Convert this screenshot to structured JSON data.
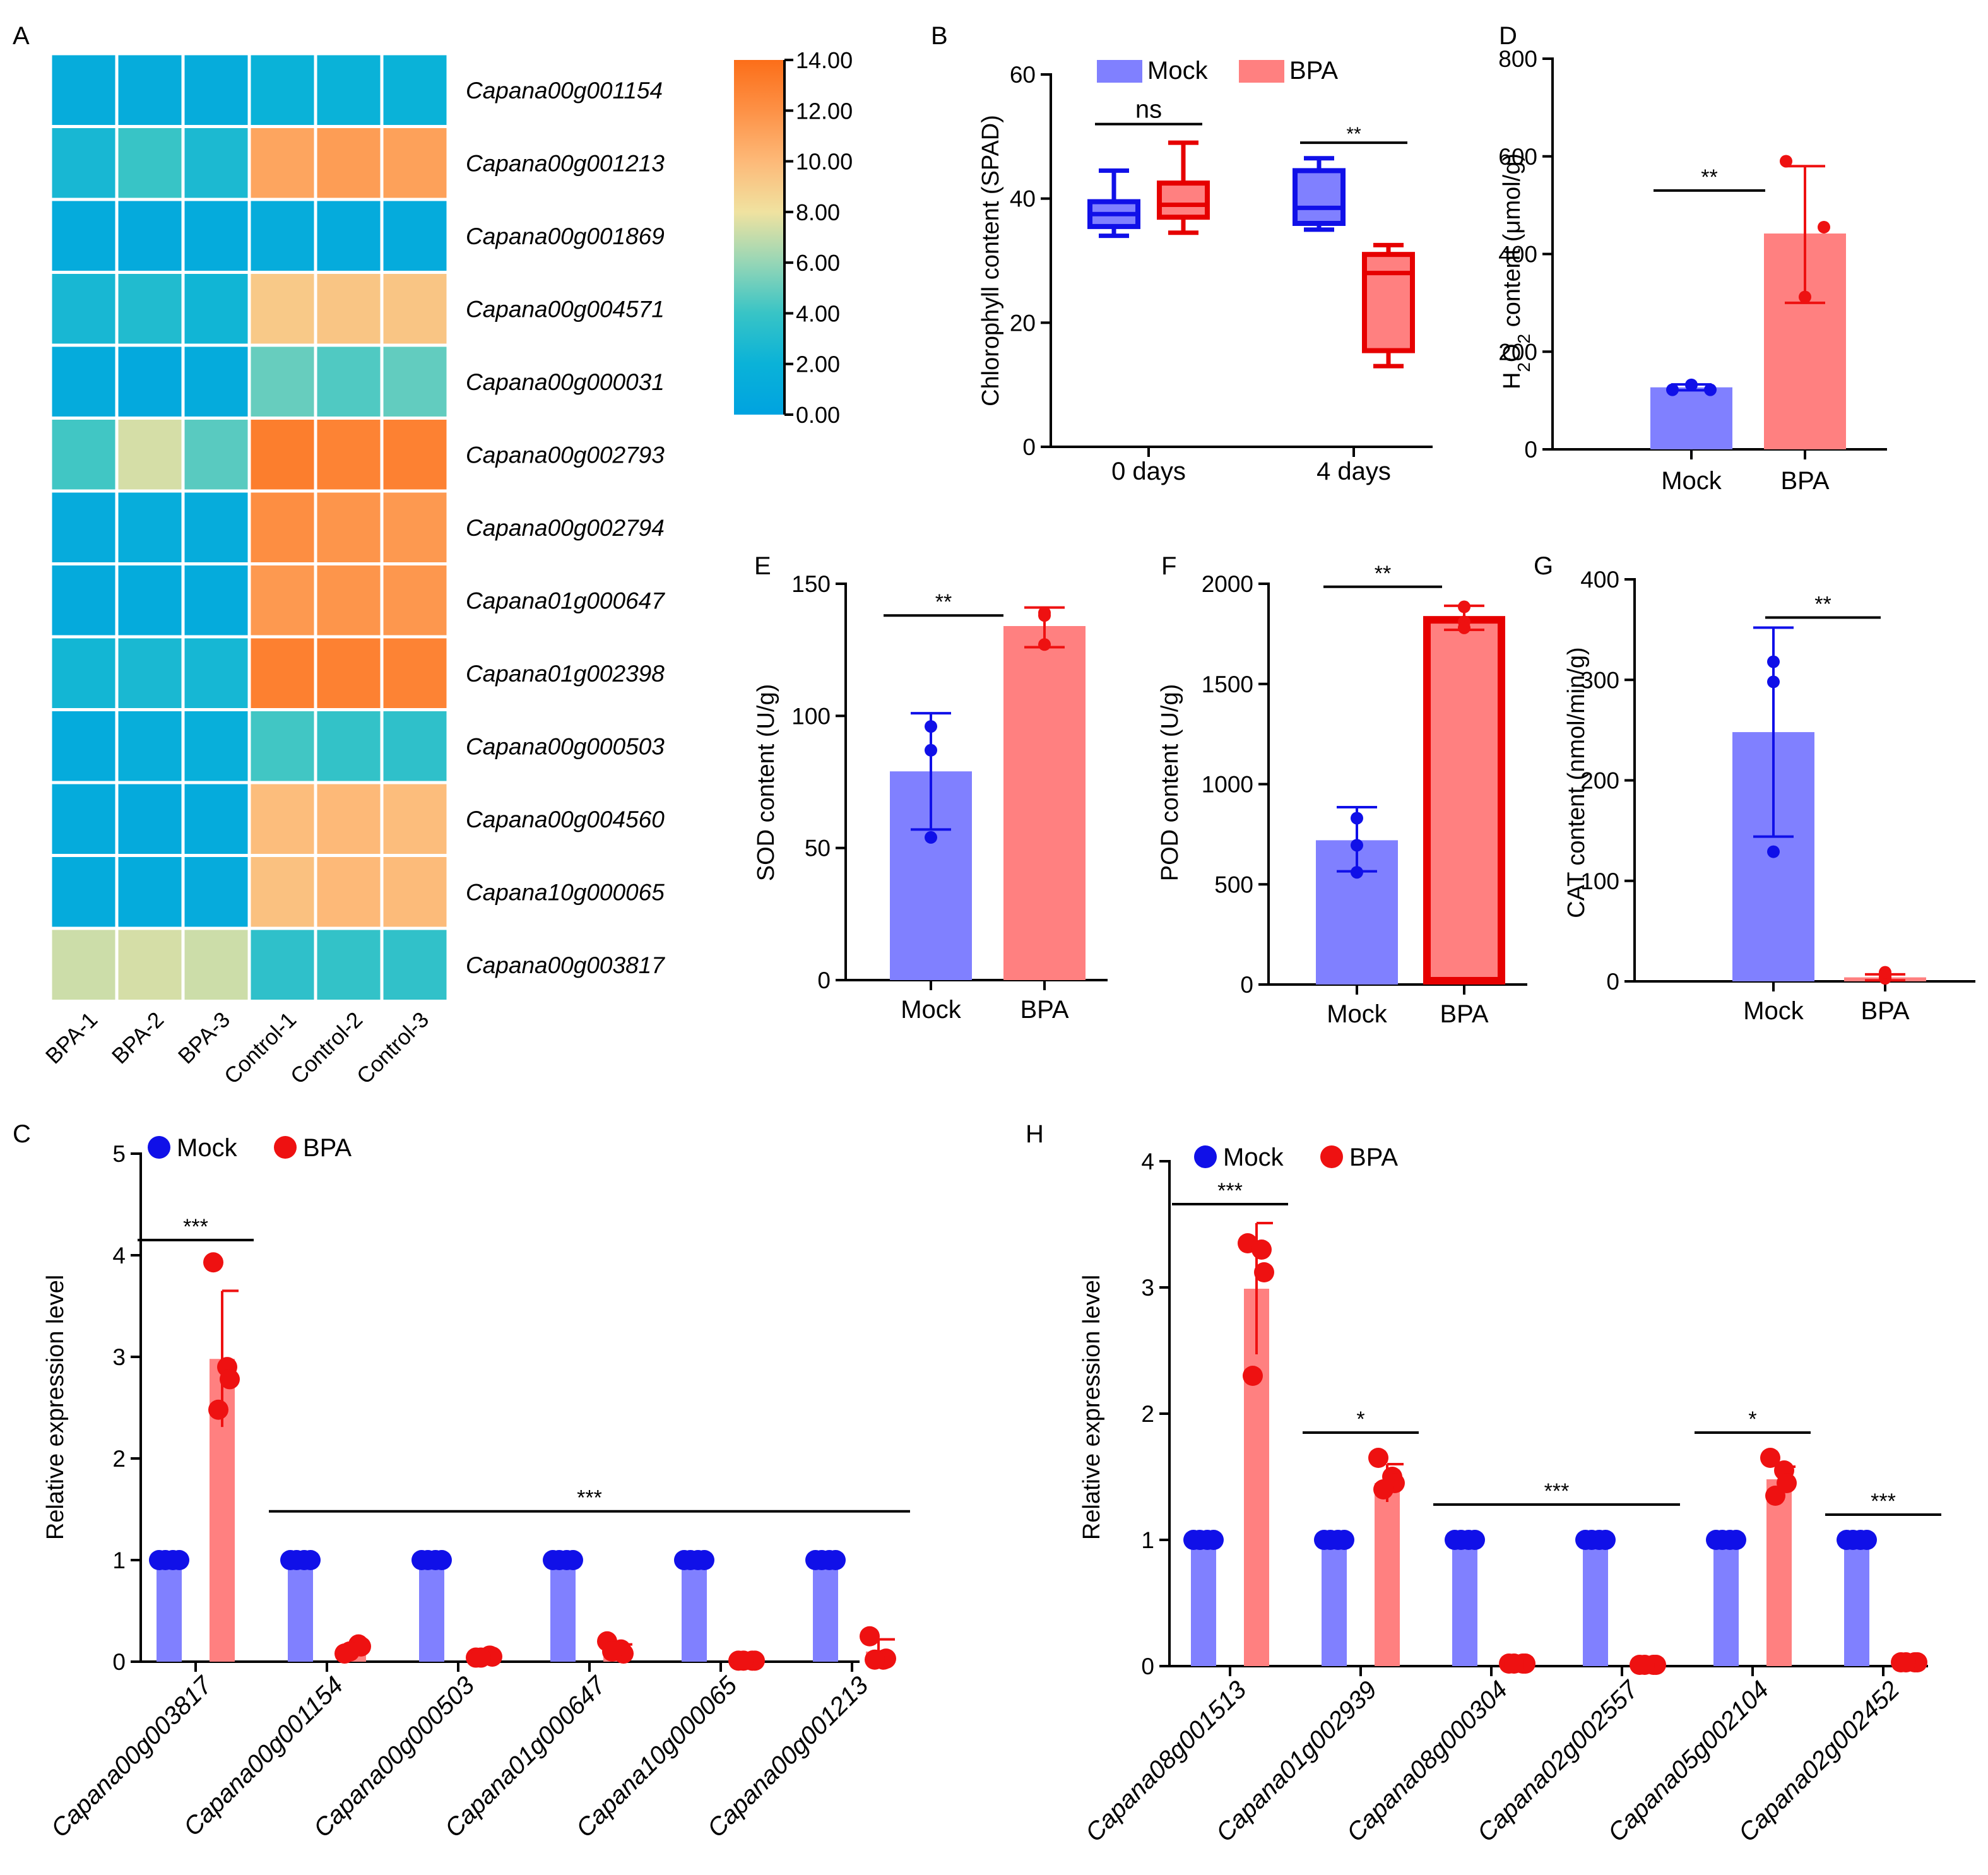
{
  "colors": {
    "mock_bar": "#8080ff",
    "mock_dot": "#1010e8",
    "bpa_bar": "#ff8080",
    "bpa_dot": "#ee1111",
    "bpa_dark": "#e60000"
  },
  "panels": {
    "A": {
      "letter": "A"
    },
    "B": {
      "letter": "B"
    },
    "C": {
      "letter": "C"
    },
    "D": {
      "letter": "D"
    },
    "E": {
      "letter": "E"
    },
    "F": {
      "letter": "F"
    },
    "G": {
      "letter": "G"
    },
    "H": {
      "letter": "H"
    }
  },
  "chart_data": [
    {
      "id": "A",
      "type": "heatmap",
      "columns": [
        "BPA-1",
        "BPA-2",
        "BPA-3",
        "Control-1",
        "Control-2",
        "Control-3"
      ],
      "rows": [
        "Capana00g001154",
        "Capana00g001213",
        "Capana00g001869",
        "Capana00g004571",
        "Capana00g000031",
        "Capana00g002793",
        "Capana00g002794",
        "Capana01g000647",
        "Capana01g002398",
        "Capana00g000503",
        "Capana00g004560",
        "Capana10g000065",
        "Capana00g003817"
      ],
      "values": [
        [
          1.2,
          1.2,
          1.2,
          2.0,
          2.0,
          2.0
        ],
        [
          2.6,
          4.0,
          2.8,
          11.0,
          11.4,
          11.2
        ],
        [
          1.0,
          0.9,
          1.0,
          1.2,
          1.0,
          1.0
        ],
        [
          2.6,
          3.0,
          2.3,
          9.2,
          9.4,
          9.4
        ],
        [
          1.0,
          0.8,
          1.0,
          5.0,
          4.5,
          4.9
        ],
        [
          4.2,
          7.4,
          4.7,
          13.1,
          12.8,
          12.9
        ],
        [
          1.1,
          1.3,
          1.2,
          12.2,
          11.8,
          11.6
        ],
        [
          0.9,
          1.0,
          1.0,
          11.6,
          11.8,
          11.7
        ],
        [
          2.4,
          2.7,
          2.5,
          13.0,
          12.9,
          12.8
        ],
        [
          1.0,
          1.5,
          1.6,
          4.2,
          3.8,
          3.6
        ],
        [
          1.0,
          0.9,
          1.0,
          9.8,
          10.0,
          9.8
        ],
        [
          1.0,
          1.0,
          1.1,
          9.6,
          10.0,
          9.9
        ],
        [
          7.2,
          7.4,
          7.2,
          3.6,
          3.8,
          3.7
        ]
      ],
      "colorbar": {
        "min": 0,
        "max": 14,
        "ticks": [
          "0.00",
          "2.00",
          "4.00",
          "6.00",
          "8.00",
          "10.00",
          "12.00",
          "14.00"
        ]
      }
    },
    {
      "id": "B",
      "type": "box",
      "ylabel": "Chlorophyll content (SPAD)",
      "ylim": [
        0,
        60
      ],
      "yticks": [
        "0",
        "20",
        "40",
        "60"
      ],
      "categories": [
        "0 days",
        "4 days"
      ],
      "legend": [
        "Mock",
        "BPA"
      ],
      "boxes": [
        {
          "group": "0 days",
          "series": "Mock",
          "min": 34,
          "q1": 35.5,
          "median": 37.5,
          "q3": 39.5,
          "max": 44.5
        },
        {
          "group": "0 days",
          "series": "BPA",
          "min": 34.5,
          "q1": 37,
          "median": 39,
          "q3": 42.5,
          "max": 49
        },
        {
          "group": "4 days",
          "series": "Mock",
          "min": 35,
          "q1": 36,
          "median": 38.5,
          "q3": 44.5,
          "max": 46.5
        },
        {
          "group": "4 days",
          "series": "BPA",
          "min": 13,
          "q1": 15.5,
          "median": 28,
          "q3": 31,
          "max": 32.5
        }
      ],
      "sig": [
        {
          "label": "ns",
          "group": "0 days",
          "y": 52
        },
        {
          "label": "**",
          "group": "4 days",
          "y": 49
        }
      ]
    },
    {
      "id": "D",
      "type": "bar",
      "ylabel": "H2O2 content (μmol/g)",
      "ylim": [
        0,
        800
      ],
      "yticks": [
        "0",
        "200",
        "400",
        "600",
        "800"
      ],
      "categories": [
        "Mock",
        "BPA"
      ],
      "values": [
        127,
        442
      ],
      "err": [
        [
          121,
          133
        ],
        [
          300,
          580
        ]
      ],
      "points": [
        [
          122,
          132,
          122
        ],
        [
          590,
          312,
          455
        ]
      ],
      "sig": {
        "label": "**",
        "y": 530
      }
    },
    {
      "id": "E",
      "type": "bar",
      "ylabel": "SOD content (U/g)",
      "ylim": [
        0,
        150
      ],
      "yticks": [
        "0",
        "50",
        "100",
        "150"
      ],
      "categories": [
        "Mock",
        "BPA"
      ],
      "values": [
        79,
        134
      ],
      "err": [
        [
          57,
          101
        ],
        [
          126,
          141
        ]
      ],
      "points": [
        [
          96,
          87,
          54
        ],
        [
          139,
          138,
          127
        ]
      ],
      "sig": {
        "label": "**",
        "y": 138
      }
    },
    {
      "id": "F",
      "type": "bar",
      "ylabel": "POD content (U/g)",
      "ylim": [
        0,
        2000
      ],
      "yticks": [
        "0",
        "500",
        "1000",
        "1500",
        "2000"
      ],
      "categories": [
        "Mock",
        "BPA"
      ],
      "values": [
        720,
        1820
      ],
      "err": [
        [
          565,
          885
        ],
        [
          1770,
          1890
        ]
      ],
      "points": [
        [
          830,
          695,
          560
        ],
        [
          1885,
          1810,
          1780
        ]
      ],
      "sig": {
        "label": "**",
        "y": 1985
      }
    },
    {
      "id": "G",
      "type": "bar",
      "ylabel": "CAT content (nmol/min/g)",
      "ylim": [
        0,
        400
      ],
      "yticks": [
        "0",
        "100",
        "200",
        "300",
        "400"
      ],
      "categories": [
        "Mock",
        "BPA"
      ],
      "values": [
        248,
        4
      ],
      "err": [
        [
          144,
          352
        ],
        [
          1,
          7
        ]
      ],
      "points": [
        [
          318,
          298,
          129
        ],
        [
          3,
          5,
          9
        ]
      ],
      "sig": {
        "label": "**",
        "y": 362
      }
    },
    {
      "id": "C",
      "type": "bar",
      "ylabel": "Relative expression level",
      "ylim": [
        0,
        5
      ],
      "yticks": [
        "0",
        "1",
        "2",
        "3",
        "4",
        "5"
      ],
      "legend": [
        "Mock",
        "BPA"
      ],
      "categories": [
        "Capana00g003817",
        "Capana00g001154",
        "Capana00g000503",
        "Capana01g000647",
        "Capana10g000065",
        "Capana00g001213"
      ],
      "series": [
        {
          "name": "Mock",
          "values": [
            1,
            1,
            1,
            1,
            1,
            1
          ]
        },
        {
          "name": "BPA",
          "values": [
            2.98,
            0.12,
            0.05,
            0.12,
            0.01,
            0.1
          ]
        }
      ],
      "err": [
        0.67,
        0.04,
        0.02,
        0.05,
        0.01,
        0.12
      ],
      "points": [
        [
          3.93,
          2.9,
          2.78,
          2.48
        ],
        [
          0.08,
          0.17,
          0.15,
          0.1
        ],
        [
          0.04,
          0.06,
          0.05,
          0.04
        ],
        [
          0.2,
          0.12,
          0.08,
          0.1
        ],
        [
          0.01,
          0.01,
          0.01,
          0.01
        ],
        [
          0.25,
          0.02,
          0.03,
          0.02
        ]
      ],
      "sig": [
        {
          "label": "***",
          "from": 0,
          "to": 0,
          "y": 4.15
        },
        {
          "label": "***",
          "from": 1,
          "to": 5,
          "y": 1.48
        }
      ]
    },
    {
      "id": "H",
      "type": "bar",
      "ylabel": "Relative expression level",
      "ylim": [
        0,
        4
      ],
      "yticks": [
        "0",
        "1",
        "2",
        "3",
        "4"
      ],
      "legend": [
        "Mock",
        "BPA"
      ],
      "categories": [
        "Capana08g001513",
        "Capana01g002939",
        "Capana08g000304",
        "Capana02g002557",
        "Capana05g002104",
        "Capana02g002452"
      ],
      "series": [
        {
          "name": "Mock",
          "values": [
            1,
            1,
            1,
            1,
            1,
            1
          ]
        },
        {
          "name": "BPA",
          "values": [
            2.99,
            1.45,
            0.02,
            0.01,
            1.48,
            0.03
          ]
        }
      ],
      "err": [
        0.52,
        0.15,
        0.01,
        0.01,
        0.1,
        0.01
      ],
      "points": [
        [
          3.35,
          3.3,
          3.12,
          2.3
        ],
        [
          1.65,
          1.5,
          1.45,
          1.4
        ],
        [
          0.02,
          0.02,
          0.02,
          0.02
        ],
        [
          0.01,
          0.01,
          0.01,
          0.01
        ],
        [
          1.65,
          1.55,
          1.45,
          1.35
        ],
        [
          0.03,
          0.03,
          0.03,
          0.03
        ]
      ],
      "sig": [
        {
          "label": "***",
          "from": 0,
          "to": 0,
          "y": 3.66
        },
        {
          "label": "*",
          "from": 1,
          "to": 1,
          "y": 1.85
        },
        {
          "label": "***",
          "from": 2,
          "to": 3,
          "y": 1.28
        },
        {
          "label": "*",
          "from": 4,
          "to": 4,
          "y": 1.85
        },
        {
          "label": "***",
          "from": 5,
          "to": 5,
          "y": 1.2
        }
      ]
    }
  ]
}
